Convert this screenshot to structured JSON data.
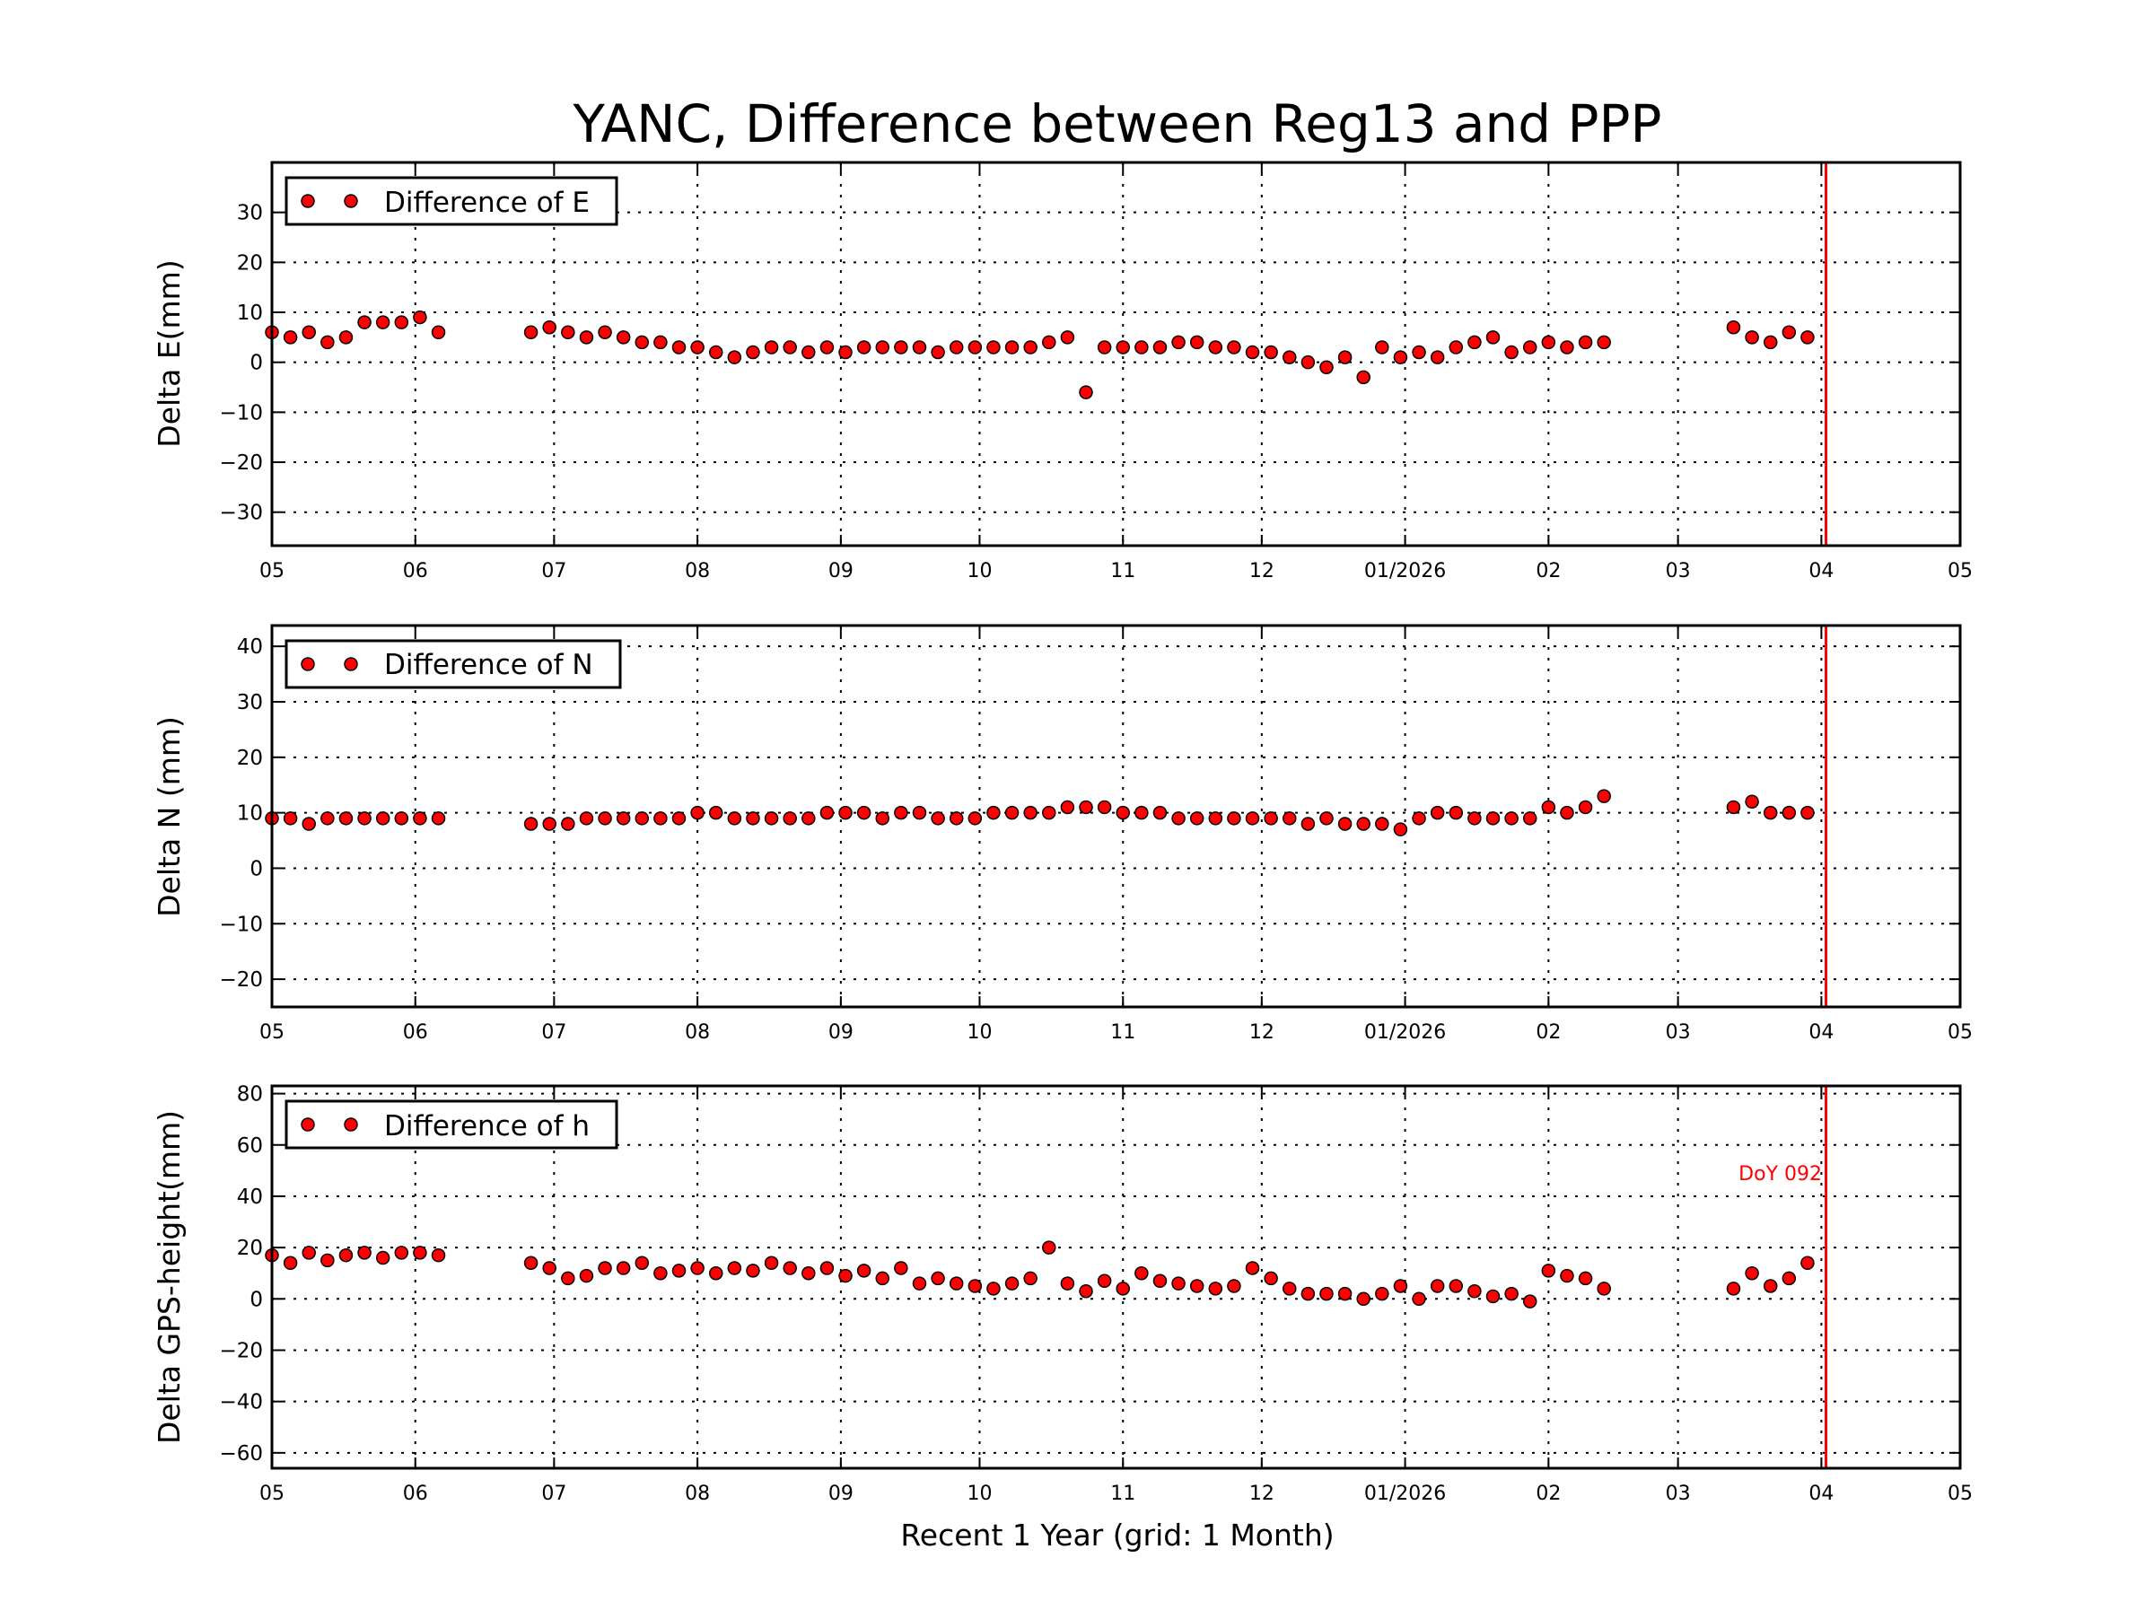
{
  "chart_data": {
    "title": "YANC, Difference between Reg13 and PPP",
    "xlabel": "Recent 1 Year (grid: 1 Month)",
    "xlim": [
      "2025-05-01",
      "2026-05-01"
    ],
    "xticks": [
      {
        "date": "2025-05-01",
        "label": "05"
      },
      {
        "date": "2025-06-01",
        "label": "06"
      },
      {
        "date": "2025-07-01",
        "label": "07"
      },
      {
        "date": "2025-08-01",
        "label": "08"
      },
      {
        "date": "2025-09-01",
        "label": "09"
      },
      {
        "date": "2025-10-01",
        "label": "10"
      },
      {
        "date": "2025-11-01",
        "label": "11"
      },
      {
        "date": "2025-12-01",
        "label": "12"
      },
      {
        "date": "2026-01-01",
        "label": "01/2026"
      },
      {
        "date": "2026-02-01",
        "label": "02"
      },
      {
        "date": "2026-03-01",
        "label": "03"
      },
      {
        "date": "2026-04-01",
        "label": "04"
      },
      {
        "date": "2026-05-01",
        "label": "05"
      }
    ],
    "marker": {
      "date": "2026-04-02",
      "label": "DoY 092",
      "color": "#ff0000"
    },
    "point_color": "#ff0000",
    "grid": true,
    "legend_position": "top-left",
    "x": [
      "2025-05-01",
      "2025-05-05",
      "2025-05-09",
      "2025-05-13",
      "2025-05-17",
      "2025-05-21",
      "2025-05-25",
      "2025-05-29",
      "2025-06-02",
      "2025-06-06",
      "2025-06-10",
      "2025-06-14",
      "2025-06-18",
      "2025-06-22",
      "2025-06-26",
      "2025-06-30",
      "2025-07-04",
      "2025-07-08",
      "2025-07-12",
      "2025-07-16",
      "2025-07-20",
      "2025-07-24",
      "2025-07-28",
      "2025-08-01",
      "2025-08-05",
      "2025-08-09",
      "2025-08-13",
      "2025-08-17",
      "2025-08-21",
      "2025-08-25",
      "2025-08-29",
      "2025-09-02",
      "2025-09-06",
      "2025-09-10",
      "2025-09-14",
      "2025-09-18",
      "2025-09-22",
      "2025-09-26",
      "2025-09-30",
      "2025-10-04",
      "2025-10-08",
      "2025-10-12",
      "2025-10-16",
      "2025-10-20",
      "2025-10-24",
      "2025-10-28",
      "2025-11-01",
      "2025-11-05",
      "2025-11-09",
      "2025-11-13",
      "2025-11-17",
      "2025-11-21",
      "2025-11-25",
      "2025-11-29",
      "2025-12-03",
      "2025-12-07",
      "2025-12-11",
      "2025-12-15",
      "2025-12-19",
      "2025-12-23",
      "2025-12-27",
      "2025-12-31",
      "2026-01-04",
      "2026-01-08",
      "2026-01-12",
      "2026-01-16",
      "2026-01-20",
      "2026-01-24",
      "2026-01-28",
      "2026-02-01",
      "2026-02-05",
      "2026-02-09",
      "2026-02-13",
      "2026-02-17",
      "2026-02-21",
      "2026-02-25",
      "2026-03-01",
      "2026-03-05",
      "2026-03-09",
      "2026-03-13",
      "2026-03-17",
      "2026-03-21",
      "2026-03-25",
      "2026-03-29"
    ],
    "panels": [
      {
        "type": "scatter",
        "ylabel": "Delta E(mm)",
        "legend": "Difference of E",
        "ylim": [
          -36.7,
          40
        ],
        "yticks": [
          -30,
          -20,
          -10,
          0,
          10,
          20,
          30
        ],
        "values": [
          6,
          5,
          6,
          4,
          5,
          8,
          8,
          8,
          9,
          6,
          null,
          null,
          null,
          null,
          6,
          7,
          6,
          5,
          6,
          5,
          4,
          4,
          3,
          3,
          2,
          1,
          2,
          3,
          3,
          2,
          3,
          2,
          3,
          3,
          3,
          3,
          2,
          3,
          3,
          3,
          3,
          3,
          4,
          5,
          -6,
          3,
          3,
          3,
          3,
          4,
          4,
          3,
          3,
          2,
          2,
          1,
          0,
          -1,
          1,
          -3,
          3,
          1,
          2,
          1,
          3,
          4,
          5,
          2,
          3,
          4,
          3,
          4,
          4,
          null,
          null,
          null,
          null,
          null,
          null,
          7,
          5,
          4,
          6,
          5
        ]
      },
      {
        "type": "scatter",
        "ylabel": "Delta N (mm)",
        "legend": "Difference of N",
        "ylim": [
          -25,
          43.75
        ],
        "yticks": [
          -20,
          -10,
          0,
          10,
          20,
          30,
          40
        ],
        "values": [
          9,
          9,
          8,
          9,
          9,
          9,
          9,
          9,
          9,
          9,
          null,
          null,
          null,
          null,
          8,
          8,
          8,
          9,
          9,
          9,
          9,
          9,
          9,
          10,
          10,
          9,
          9,
          9,
          9,
          9,
          10,
          10,
          10,
          9,
          10,
          10,
          9,
          9,
          9,
          10,
          10,
          10,
          10,
          11,
          11,
          11,
          10,
          10,
          10,
          9,
          9,
          9,
          9,
          9,
          9,
          9,
          8,
          9,
          8,
          8,
          8,
          7,
          9,
          10,
          10,
          9,
          9,
          9,
          9,
          11,
          10,
          11,
          13,
          null,
          null,
          null,
          null,
          null,
          null,
          11,
          12,
          10,
          10,
          10
        ]
      },
      {
        "type": "scatter",
        "ylabel": "Delta GPS-height(mm)",
        "legend": "Difference of h",
        "ylim": [
          -66,
          83
        ],
        "yticks": [
          -60,
          -40,
          -20,
          0,
          20,
          40,
          60,
          80
        ],
        "values": [
          17,
          14,
          18,
          15,
          17,
          18,
          16,
          18,
          18,
          17,
          null,
          null,
          null,
          null,
          14,
          12,
          8,
          9,
          12,
          12,
          14,
          10,
          11,
          12,
          10,
          12,
          11,
          14,
          12,
          10,
          12,
          9,
          11,
          8,
          12,
          6,
          8,
          6,
          5,
          4,
          6,
          8,
          20,
          6,
          3,
          7,
          4,
          10,
          7,
          6,
          5,
          4,
          5,
          12,
          8,
          4,
          2,
          2,
          2,
          0,
          2,
          5,
          0,
          5,
          5,
          3,
          1,
          2,
          -1,
          11,
          9,
          8,
          4,
          null,
          null,
          null,
          null,
          null,
          null,
          4,
          10,
          5,
          8,
          14
        ]
      }
    ]
  }
}
